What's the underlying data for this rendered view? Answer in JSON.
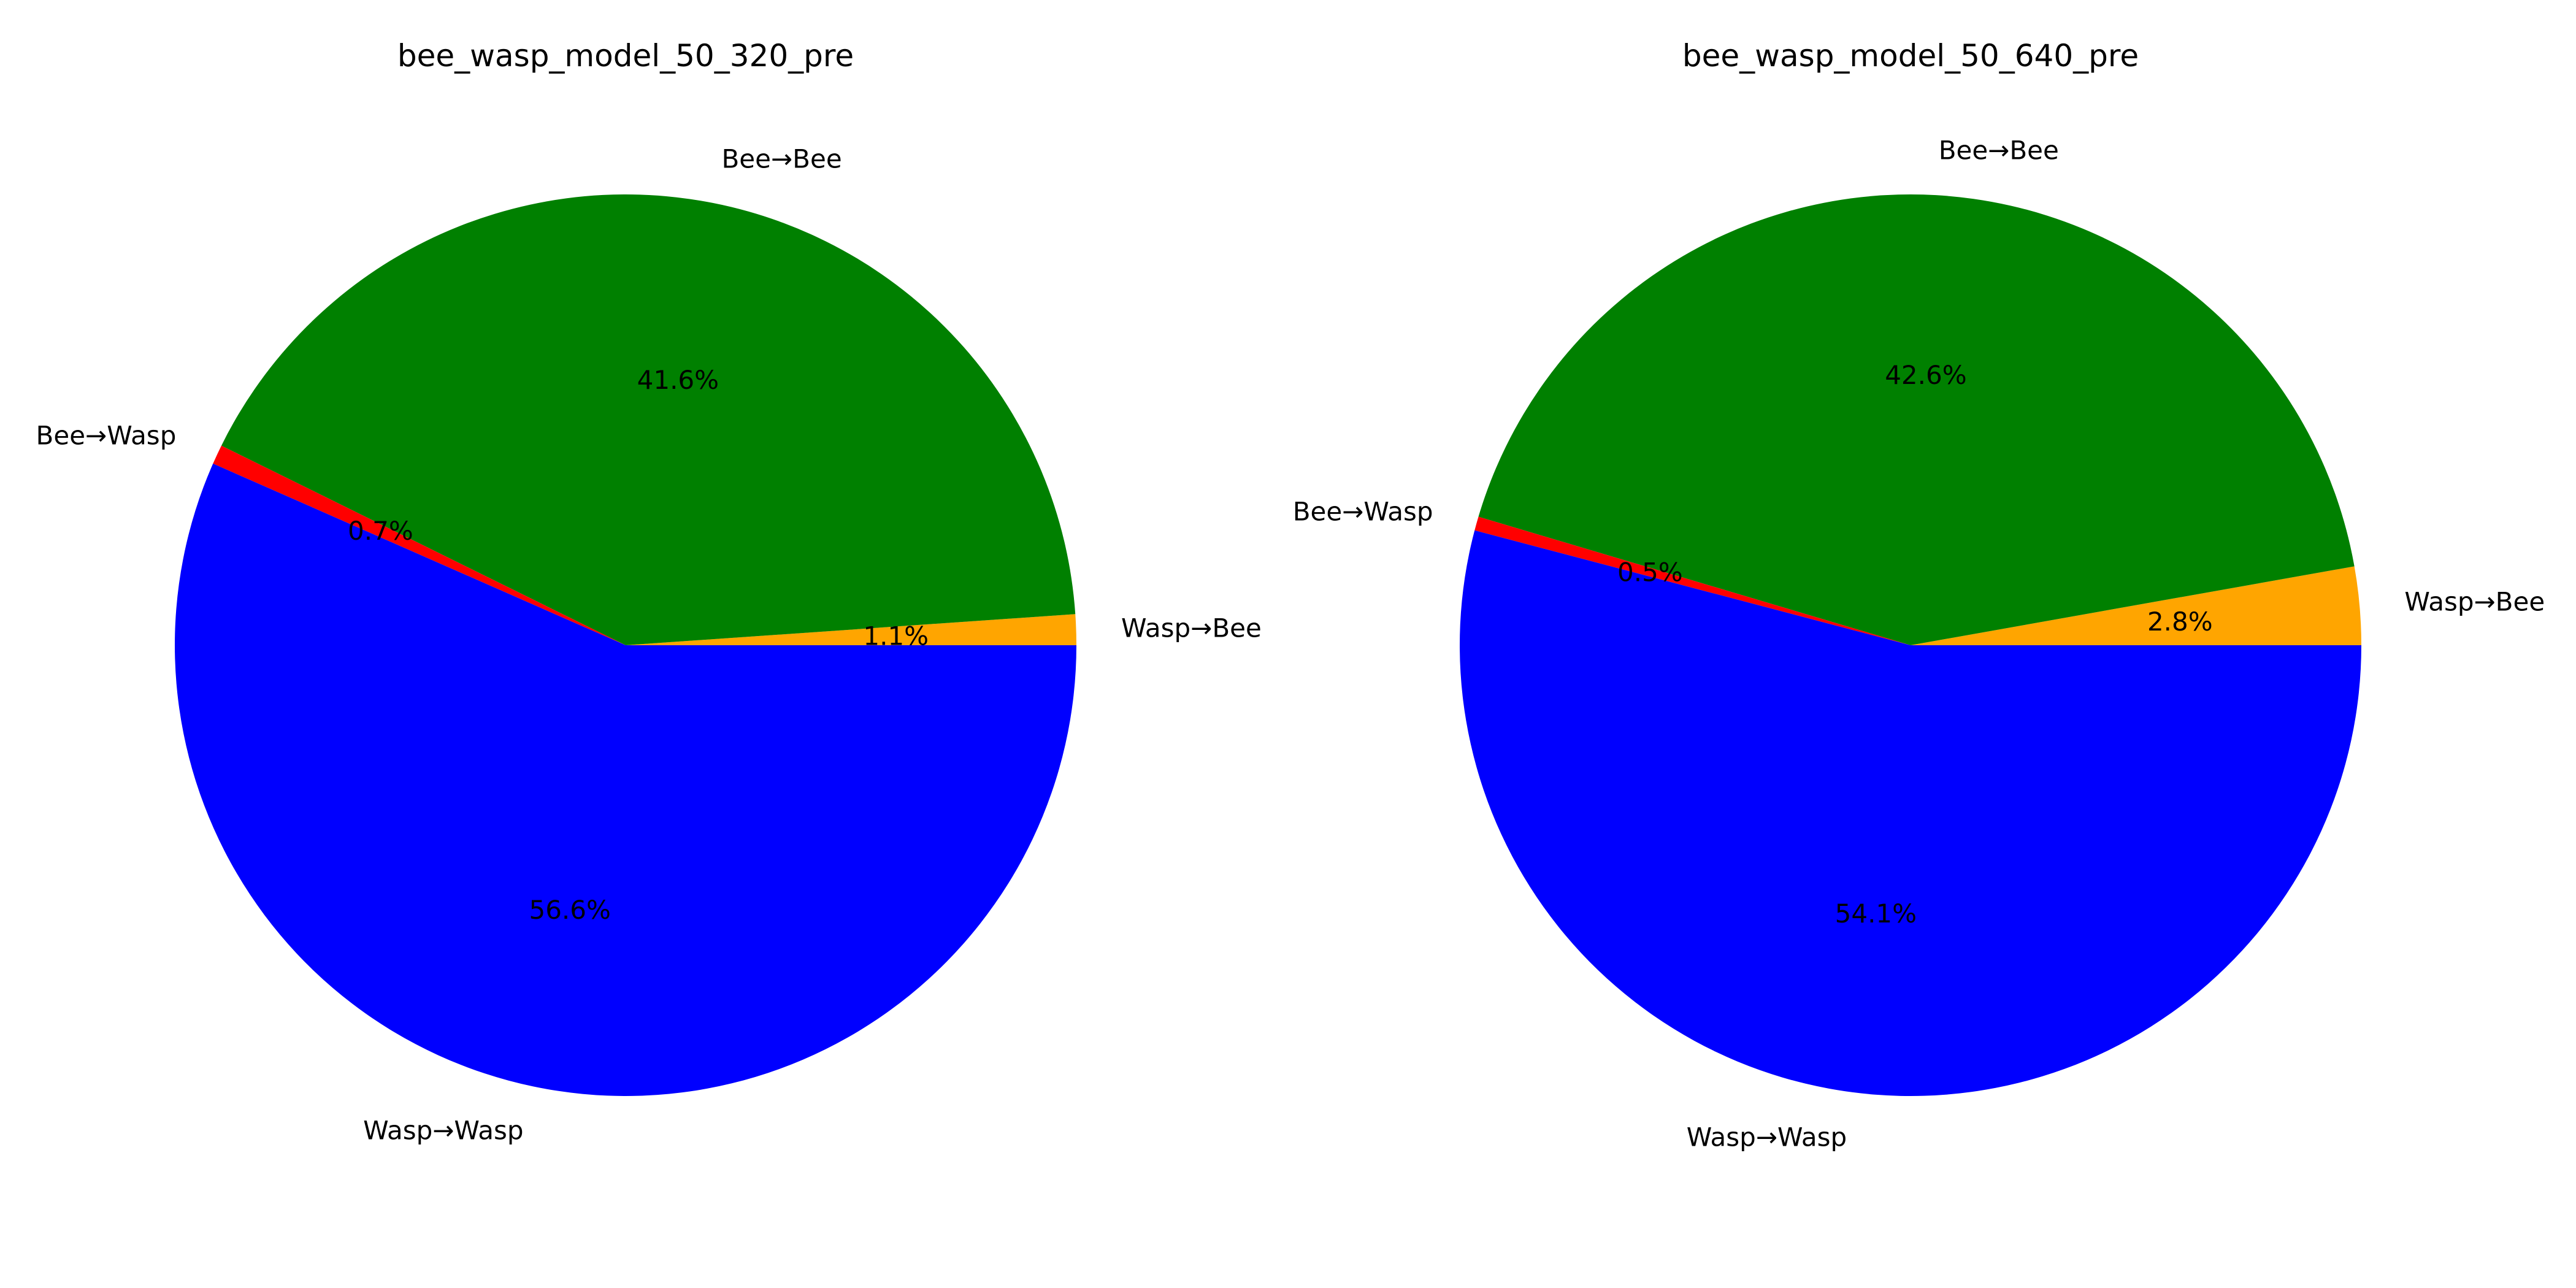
{
  "chart_data": [
    {
      "type": "pie",
      "title": "bee_wasp_model_50_320_pre",
      "labels": [
        "Wasp→Bee",
        "Bee→Bee",
        "Bee→Wasp",
        "Wasp→Wasp"
      ],
      "values": [
        1.1,
        41.6,
        0.7,
        56.6
      ],
      "pct_labels": [
        "1.1%",
        "41.6%",
        "0.7%",
        "56.6%"
      ],
      "colors": [
        "#ffa500",
        "#008000",
        "#ff0000",
        "#0000ff"
      ],
      "start_angle_deg": 0,
      "direction": "counterclockwise",
      "legend": "none"
    },
    {
      "type": "pie",
      "title": "bee_wasp_model_50_640_pre",
      "labels": [
        "Wasp→Bee",
        "Bee→Bee",
        "Bee→Wasp",
        "Wasp→Wasp"
      ],
      "values": [
        2.8,
        42.6,
        0.5,
        54.1
      ],
      "pct_labels": [
        "2.8%",
        "42.6%",
        "0.5%",
        "54.1%"
      ],
      "colors": [
        "#ffa500",
        "#008000",
        "#ff0000",
        "#0000ff"
      ],
      "start_angle_deg": 0,
      "direction": "counterclockwise",
      "legend": "none"
    }
  ]
}
